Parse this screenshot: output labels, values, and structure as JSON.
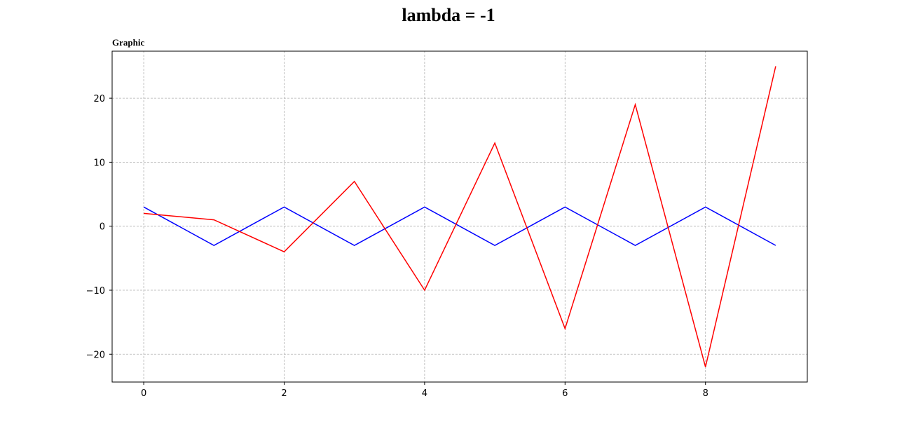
{
  "figure": {
    "suptitle": "lambda = -1"
  },
  "chart_data": {
    "type": "line",
    "title": "Graphic",
    "xlabel": "",
    "ylabel": "",
    "xlim": [
      -0.45,
      9.45
    ],
    "ylim": [
      -24.35,
      27.35
    ],
    "xticks": [
      0,
      2,
      4,
      6,
      8
    ],
    "xtick_labels": [
      "0",
      "2",
      "4",
      "6",
      "8"
    ],
    "yticks": [
      -20,
      -10,
      0,
      10,
      20
    ],
    "ytick_labels": [
      "−20",
      "−10",
      "0",
      "10",
      "20"
    ],
    "grid": true,
    "legend": false,
    "x": [
      0,
      1,
      2,
      3,
      4,
      5,
      6,
      7,
      8,
      9
    ],
    "series": [
      {
        "color": "#0000ff",
        "values": [
          3,
          -3,
          3,
          -3,
          3,
          -3,
          3,
          -3,
          3,
          -3
        ]
      },
      {
        "color": "#ff0000",
        "values": [
          2,
          1,
          -4,
          7,
          -10,
          13,
          -16,
          19,
          -22,
          25
        ]
      }
    ]
  }
}
